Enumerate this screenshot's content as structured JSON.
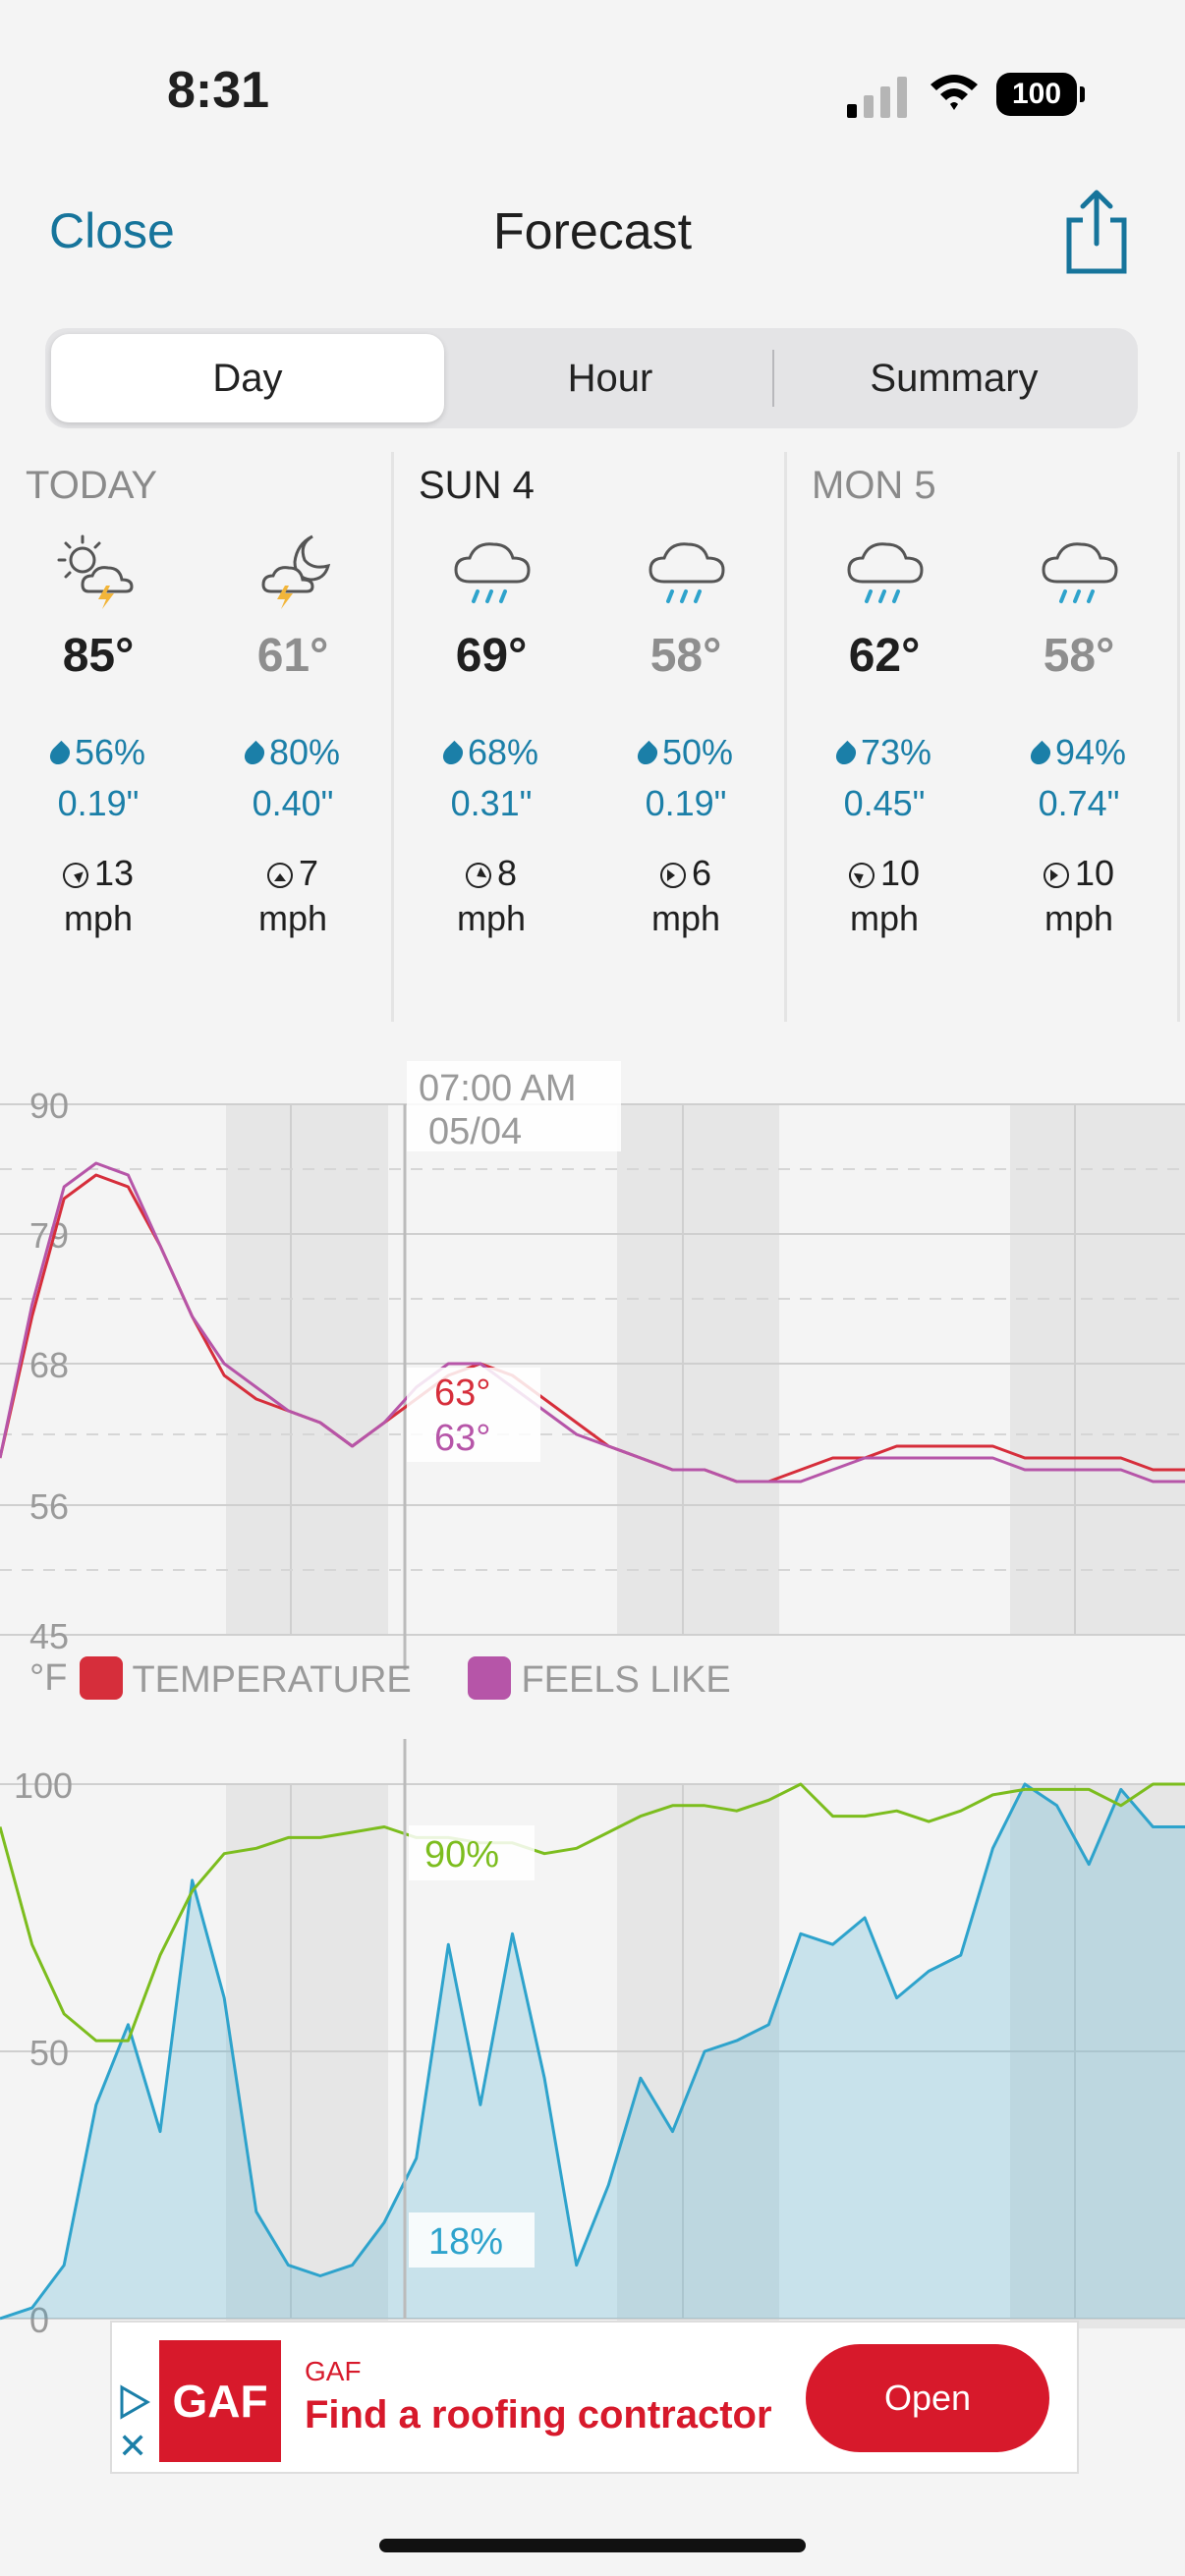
{
  "status_bar": {
    "time": "8:31",
    "battery": "100"
  },
  "nav": {
    "close_label": "Close",
    "title": "Forecast"
  },
  "segments": [
    {
      "label": "Day",
      "active": true
    },
    {
      "label": "Hour",
      "active": false
    },
    {
      "label": "Summary",
      "active": false
    }
  ],
  "days": [
    {
      "label": "TODAY",
      "slots": [
        {
          "icon": "sun-thunderstorm-icon",
          "temp": "85°",
          "precip_chance": "56%",
          "precip_amount": "0.19\"",
          "wind_speed": "13",
          "wind_unit": "mph"
        },
        {
          "icon": "moon-thunderstorm-icon",
          "temp": "61°",
          "precip_chance": "80%",
          "precip_amount": "0.40\"",
          "wind_speed": "7",
          "wind_unit": "mph"
        }
      ]
    },
    {
      "label": "SUN 4",
      "slots": [
        {
          "icon": "rain-cloud-icon",
          "temp": "69°",
          "precip_chance": "68%",
          "precip_amount": "0.31\"",
          "wind_speed": "8",
          "wind_unit": "mph"
        },
        {
          "icon": "rain-cloud-icon",
          "temp": "58°",
          "precip_chance": "50%",
          "precip_amount": "0.19\"",
          "wind_speed": "6",
          "wind_unit": "mph"
        }
      ]
    },
    {
      "label": "MON 5",
      "slots": [
        {
          "icon": "rain-cloud-icon",
          "temp": "62°",
          "precip_chance": "73%",
          "precip_amount": "0.45\"",
          "wind_speed": "10",
          "wind_unit": "mph"
        },
        {
          "icon": "rain-cloud-icon",
          "temp": "58°",
          "precip_chance": "94%",
          "precip_amount": "0.74\"",
          "wind_speed": "10",
          "wind_unit": "mph"
        }
      ]
    }
  ],
  "temp_chart": {
    "cursor_time": "07:00 AM",
    "cursor_date": "05/04",
    "y_ticks": [
      "90",
      "79",
      "68",
      "56",
      "45"
    ],
    "unit": "°F",
    "legend": [
      {
        "label": "TEMPERATURE",
        "color": "#d62e3b"
      },
      {
        "label": "FEELS LIKE",
        "color": "#b655a8"
      }
    ],
    "temp_value": "63°",
    "feels_value": "63°"
  },
  "precip_chart": {
    "y_ticks": [
      "100",
      "50",
      "0"
    ],
    "humidity_value": "90%",
    "precip_value": "18%"
  },
  "ad": {
    "brand": "GAF",
    "logo_text": "GAF",
    "headline": "Find a roofing contractor",
    "button": "Open"
  },
  "chart_data": [
    {
      "type": "line",
      "ylim": [
        45,
        90
      ],
      "y_ticks": [
        90,
        79,
        68,
        56,
        45
      ],
      "series": [
        {
          "name": "TEMPERATURE",
          "color": "#d62e3b",
          "values": [
            60,
            72,
            82,
            84,
            83,
            78,
            72,
            67,
            65,
            64,
            63,
            61,
            63,
            65,
            67,
            68,
            67,
            65,
            63,
            61,
            60,
            59,
            59,
            58,
            58,
            59,
            60,
            60,
            61,
            61,
            61,
            61,
            60,
            60,
            60,
            60,
            59,
            59
          ]
        },
        {
          "name": "FEELS LIKE",
          "color": "#b655a8",
          "values": [
            60,
            73,
            83,
            85,
            84,
            78,
            72,
            68,
            66,
            64,
            63,
            61,
            63,
            66,
            68,
            68,
            66,
            64,
            62,
            61,
            60,
            59,
            59,
            58,
            58,
            58,
            59,
            60,
            60,
            60,
            60,
            60,
            59,
            59,
            59,
            59,
            58,
            58
          ]
        }
      ]
    },
    {
      "type": "area",
      "ylim": [
        0,
        100
      ],
      "y_ticks": [
        100,
        50,
        0
      ],
      "series": [
        {
          "name": "humidity",
          "color": "#7cbd1e",
          "values": [
            92,
            70,
            57,
            52,
            52,
            68,
            80,
            87,
            88,
            90,
            90,
            91,
            92,
            90,
            90,
            89,
            89,
            87,
            88,
            91,
            94,
            96,
            96,
            95,
            97,
            100,
            94,
            94,
            95,
            93,
            95,
            98,
            99,
            99,
            99,
            96,
            100,
            100
          ]
        },
        {
          "name": "precipitation",
          "color": "#2ea3cc",
          "values": [
            0,
            2,
            10,
            40,
            55,
            35,
            82,
            60,
            20,
            10,
            8,
            10,
            18,
            30,
            70,
            40,
            72,
            45,
            10,
            25,
            45,
            35,
            50,
            52,
            55,
            72,
            70,
            75,
            60,
            65,
            68,
            88,
            100,
            96,
            85,
            99,
            92,
            92
          ]
        }
      ]
    }
  ]
}
